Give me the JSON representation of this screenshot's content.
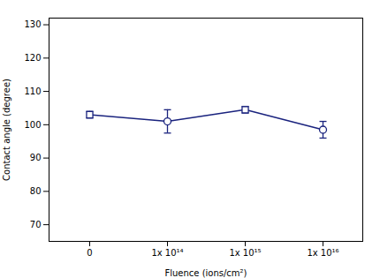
{
  "chart_data": {
    "type": "line",
    "xlabel": "Fluence (ions/cm²)",
    "ylabel": "Contact angle (degree)",
    "categories": [
      "0",
      "1x 10¹⁴",
      "1x 10¹⁵",
      "1x 10¹⁶"
    ],
    "values": [
      103.0,
      101.0,
      104.5,
      98.5
    ],
    "errors": [
      1.0,
      3.5,
      1.0,
      2.5
    ],
    "markers": [
      "square",
      "circle",
      "square",
      "circle"
    ],
    "color": "#1a237e",
    "ylim": [
      65,
      132
    ],
    "yticks": [
      70,
      80,
      90,
      100,
      110,
      120,
      130
    ],
    "grid": false
  }
}
